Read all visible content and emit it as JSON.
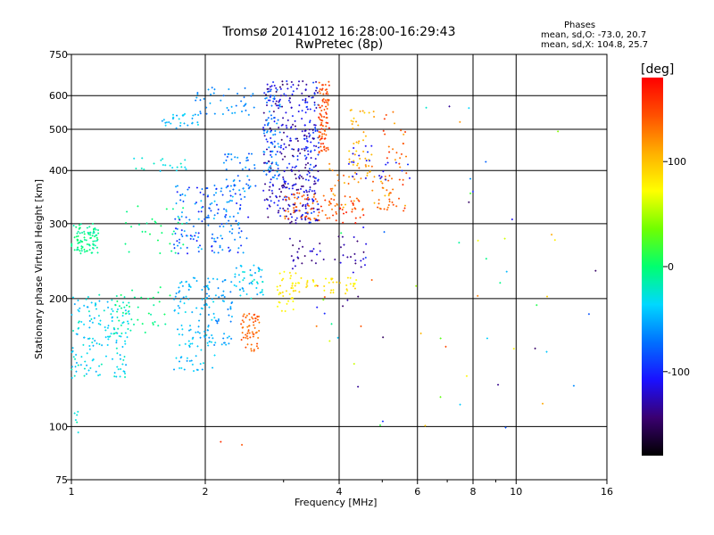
{
  "header": {
    "title": "Tromsø 20141012 16:28:00-16:29:43",
    "subtitle": "RwPretec (8p)"
  },
  "stats": {
    "heading": "Phases",
    "o_line": "mean, sd,O: -73.0, 20.7",
    "x_line": "mean, sd,X: 104.8, 25.7"
  },
  "colorbar": {
    "unit_label": "[deg]",
    "ticks": [
      {
        "value": 100,
        "label": "100"
      },
      {
        "value": 0,
        "label": "0"
      },
      {
        "value": -100,
        "label": "-100"
      }
    ],
    "range": [
      -180,
      180
    ],
    "colors": [
      "#000000",
      "#3a0070",
      "#1a10ff",
      "#0070ff",
      "#00d8ff",
      "#00ff70",
      "#70ff00",
      "#ffff00",
      "#ffb000",
      "#ff5000",
      "#ff0000"
    ]
  },
  "chart_data": {
    "type": "scatter",
    "title": "Tromsø 20141012 16:28:00-16:29:43",
    "subtitle": "RwPretec (8p)",
    "xlabel": "Frequency [MHz]",
    "ylabel": "Stationary phase Virtual Height [km]",
    "xscale": "log",
    "yscale": "log",
    "xlim": [
      1,
      16
    ],
    "ylim": [
      75,
      750
    ],
    "grid": true,
    "x_ticks": [
      {
        "value": 1,
        "label": "1"
      },
      {
        "value": 2,
        "label": "2"
      },
      {
        "value": 4,
        "label": "4"
      },
      {
        "value": 6,
        "label": "6"
      },
      {
        "value": 8,
        "label": "8"
      },
      {
        "value": 10,
        "label": "10"
      },
      {
        "value": 16,
        "label": "16"
      }
    ],
    "x_minor": [
      3,
      5,
      7,
      9
    ],
    "y_ticks": [
      {
        "value": 75,
        "label": "75"
      },
      {
        "value": 100,
        "label": "100"
      },
      {
        "value": 200,
        "label": "200"
      },
      {
        "value": 300,
        "label": "300"
      },
      {
        "value": 400,
        "label": "400"
      },
      {
        "value": 500,
        "label": "500"
      },
      {
        "value": 600,
        "label": "600"
      },
      {
        "value": 750,
        "label": "750"
      }
    ],
    "clusters": [
      {
        "f": [
          1.0,
          1.15
        ],
        "h": [
          255,
          300
        ],
        "phase": [
          -20,
          5
        ],
        "n": 90
      },
      {
        "f": [
          1.0,
          1.35
        ],
        "h": [
          130,
          205
        ],
        "phase": [
          -55,
          -15
        ],
        "n": 160
      },
      {
        "f": [
          1.0,
          1.05
        ],
        "h": [
          95,
          110
        ],
        "phase": [
          -30,
          -10
        ],
        "n": 6
      },
      {
        "f": [
          1.25,
          1.7
        ],
        "h": [
          165,
          215
        ],
        "phase": [
          -15,
          5
        ],
        "n": 40
      },
      {
        "f": [
          1.3,
          1.8
        ],
        "h": [
          255,
          330
        ],
        "phase": [
          -10,
          5
        ],
        "n": 30
      },
      {
        "f": [
          1.35,
          1.85
        ],
        "h": [
          390,
          430
        ],
        "phase": [
          -40,
          -15
        ],
        "n": 20
      },
      {
        "f": [
          1.6,
          1.95
        ],
        "h": [
          500,
          545
        ],
        "phase": [
          -60,
          -30
        ],
        "n": 30
      },
      {
        "f": [
          1.9,
          2.6
        ],
        "h": [
          540,
          630
        ],
        "phase": [
          -75,
          -50
        ],
        "n": 40
      },
      {
        "f": [
          1.7,
          2.1
        ],
        "h": [
          135,
          225
        ],
        "phase": [
          -60,
          -30
        ],
        "n": 110
      },
      {
        "f": [
          2.0,
          2.3
        ],
        "h": [
          155,
          225
        ],
        "phase": [
          -70,
          -40
        ],
        "n": 55
      },
      {
        "f": [
          1.7,
          2.5
        ],
        "h": [
          255,
          370
        ],
        "phase": [
          -110,
          -40
        ],
        "n": 170
      },
      {
        "f": [
          2.2,
          2.6
        ],
        "h": [
          360,
          440
        ],
        "phase": [
          -90,
          -50
        ],
        "n": 40
      },
      {
        "f": [
          2.3,
          2.7
        ],
        "h": [
          200,
          240
        ],
        "phase": [
          -60,
          -20
        ],
        "n": 50
      },
      {
        "f": [
          2.4,
          2.65
        ],
        "h": [
          150,
          185
        ],
        "phase": [
          125,
          150
        ],
        "n": 60
      },
      {
        "f": [
          2.7,
          3.4
        ],
        "h": [
          300,
          650
        ],
        "phase": [
          -150,
          -90
        ],
        "n": 280
      },
      {
        "f": [
          2.7,
          2.95
        ],
        "h": [
          380,
          620
        ],
        "phase": [
          -80,
          -50
        ],
        "n": 60
      },
      {
        "f": [
          3.35,
          3.6
        ],
        "h": [
          300,
          650
        ],
        "phase": [
          -140,
          -80
        ],
        "n": 120
      },
      {
        "f": [
          3.6,
          3.8
        ],
        "h": [
          440,
          650
        ],
        "phase": [
          130,
          165
        ],
        "n": 90
      },
      {
        "f": [
          3.0,
          4.0
        ],
        "h": [
          305,
          355
        ],
        "phase": [
          120,
          160
        ],
        "n": 70
      },
      {
        "f": [
          3.8,
          5.3
        ],
        "h": [
          320,
          420
        ],
        "phase": [
          100,
          150
        ],
        "n": 60
      },
      {
        "f": [
          4.2,
          4.8
        ],
        "h": [
          380,
          560
        ],
        "phase": [
          90,
          120
        ],
        "n": 40
      },
      {
        "f": [
          5.0,
          5.7
        ],
        "h": [
          320,
          560
        ],
        "phase": [
          110,
          160
        ],
        "n": 40
      },
      {
        "f": [
          4.0,
          4.6
        ],
        "h": [
          300,
          350
        ],
        "phase": [
          140,
          170
        ],
        "n": 20
      },
      {
        "f": [
          2.9,
          3.2
        ],
        "h": [
          185,
          235
        ],
        "phase": [
          70,
          90
        ],
        "n": 35
      },
      {
        "f": [
          3.1,
          4.4
        ],
        "h": [
          205,
          225
        ],
        "phase": [
          70,
          95
        ],
        "n": 45
      },
      {
        "f": [
          3.1,
          4.6
        ],
        "h": [
          235,
          280
        ],
        "phase": [
          -150,
          -110
        ],
        "n": 45
      },
      {
        "f": [
          3.5,
          4.5
        ],
        "h": [
          140,
          220
        ],
        "phase": [
          -150,
          150
        ],
        "n": 12
      },
      {
        "f": [
          4.2,
          5.8
        ],
        "h": [
          380,
          460
        ],
        "phase": [
          -120,
          -90
        ],
        "n": 25
      },
      {
        "f": [
          4.0,
          6.0
        ],
        "h": [
          90,
          300
        ],
        "phase": [
          -150,
          150
        ],
        "n": 14
      },
      {
        "f": [
          6.0,
          9.5
        ],
        "h": [
          80,
          620
        ],
        "phase": [
          -150,
          150
        ],
        "n": 25
      },
      {
        "f": [
          9.5,
          15.5
        ],
        "h": [
          110,
          600
        ],
        "phase": [
          -150,
          150
        ],
        "n": 14
      },
      {
        "f": [
          1.7,
          2.6
        ],
        "h": [
          90,
          100
        ],
        "phase": [
          140,
          160
        ],
        "n": 2
      }
    ]
  }
}
